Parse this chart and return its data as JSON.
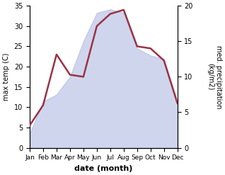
{
  "months": [
    "Jan",
    "Feb",
    "Mar",
    "Apr",
    "May",
    "Jun",
    "Jul",
    "Aug",
    "Sep",
    "Oct",
    "Nov",
    "Dec"
  ],
  "temp_max": [
    5.5,
    10.5,
    23.0,
    18.0,
    17.5,
    30.0,
    33.0,
    34.0,
    25.0,
    24.5,
    21.5,
    11.0
  ],
  "precipitation": [
    2.0,
    6.5,
    7.5,
    10.0,
    15.0,
    19.0,
    19.5,
    19.0,
    14.0,
    13.0,
    12.5,
    6.5
  ],
  "temp_ylim": [
    0,
    35
  ],
  "precip_ylim": [
    0,
    20
  ],
  "temp_yticks": [
    0,
    5,
    10,
    15,
    20,
    25,
    30,
    35
  ],
  "precip_yticks": [
    0,
    5,
    10,
    15,
    20
  ],
  "ylabel_left": "max temp (C)",
  "ylabel_right": "med. precipitation\n(kg/m2)",
  "xlabel": "date (month)",
  "fill_color": "#aab4e0",
  "fill_alpha": 0.55,
  "line_color": "#993344",
  "line_width": 1.8,
  "background_color": "#ffffff",
  "tick_fontsize": 7,
  "label_fontsize": 7,
  "xlabel_fontsize": 8
}
